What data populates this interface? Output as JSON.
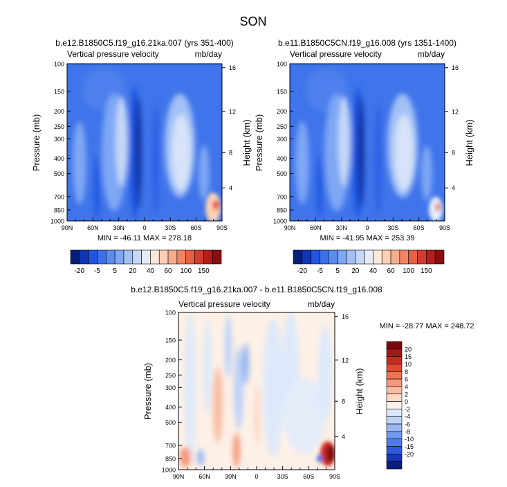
{
  "title": "SON",
  "colors": {
    "panel_fill_pale": "#dce8fa",
    "panel_fill_mid": "#6f9ff0",
    "panel_fill_deep": "#1f55e0",
    "panel_fill_darkest": "#07207d",
    "diff_fill_neutral": "#ffffff",
    "axis": "#000000"
  },
  "chart_data": [
    {
      "type": "heatmap",
      "id": "panel1",
      "title": "b.e12.B1850C5.f19_g16.21ka.007 (yrs 351-400)",
      "left_label": "Vertical pressure velocity",
      "right_label": "mb/day",
      "xlabel": "",
      "ylabel": "Pressure (mb)",
      "y2label": "Height (km)",
      "x_ticks": [
        "90N",
        "60N",
        "30N",
        "0",
        "30S",
        "60S",
        "90S"
      ],
      "x_tick_values": [
        90,
        60,
        30,
        0,
        -30,
        -60,
        -90
      ],
      "xlim": [
        90,
        -90
      ],
      "y_ticks": [
        "100",
        "150",
        "200",
        "250",
        "300",
        "400",
        "500",
        "700",
        "850",
        "1000"
      ],
      "y_tick_values": [
        100,
        150,
        200,
        250,
        300,
        400,
        500,
        700,
        850,
        1000
      ],
      "ylim": [
        100,
        1000
      ],
      "y2_ticks": [
        "4",
        "8",
        "12",
        "16"
      ],
      "y2_tick_pressures": [
        616,
        367,
        201,
        106
      ],
      "stats": {
        "min": -46.11,
        "max": 278.18
      },
      "stats_text": "MIN = -46.11   MAX = 278.18"
    },
    {
      "type": "heatmap",
      "id": "panel2",
      "title": "b.e11.B1850C5CN.f19_g16.008 (yrs 1351-1400)",
      "left_label": "Vertical pressure velocity",
      "right_label": "mb/day",
      "xlabel": "",
      "ylabel": "Pressure (mb)",
      "y2label": "Height (km)",
      "x_ticks": [
        "90N",
        "60N",
        "30N",
        "0",
        "30S",
        "60S",
        "90S"
      ],
      "x_tick_values": [
        90,
        60,
        30,
        0,
        -30,
        -60,
        -90
      ],
      "xlim": [
        90,
        -90
      ],
      "y_ticks": [
        "100",
        "150",
        "200",
        "250",
        "300",
        "400",
        "500",
        "700",
        "850",
        "1000"
      ],
      "y_tick_values": [
        100,
        150,
        200,
        250,
        300,
        400,
        500,
        700,
        850,
        1000
      ],
      "ylim": [
        100,
        1000
      ],
      "y2_ticks": [
        "4",
        "8",
        "12",
        "16"
      ],
      "y2_tick_pressures": [
        616,
        367,
        201,
        106
      ],
      "stats": {
        "min": -41.95,
        "max": 253.39
      },
      "stats_text": "MIN = -41.95   MAX = 253.39"
    },
    {
      "type": "heatmap",
      "id": "panel3",
      "title": "b.e12.B1850C5.f19_g16.21ka.007 - b.e11.B1850C5CN.f19_g16.008",
      "left_label": "Vertical pressure velocity",
      "right_label": "mb/day",
      "xlabel": "",
      "ylabel": "Pressure (mb)",
      "y2label": "Height (km)",
      "x_ticks": [
        "90N",
        "60N",
        "30N",
        "0",
        "30S",
        "60S",
        "90S"
      ],
      "x_tick_values": [
        90,
        60,
        30,
        0,
        -30,
        -60,
        -90
      ],
      "xlim": [
        90,
        -90
      ],
      "y_ticks": [
        "100",
        "150",
        "200",
        "250",
        "300",
        "400",
        "500",
        "700",
        "850",
        "1000"
      ],
      "y_tick_values": [
        100,
        150,
        200,
        250,
        300,
        400,
        500,
        700,
        850,
        1000
      ],
      "ylim": [
        100,
        1000
      ],
      "y2_ticks": [
        "4",
        "8",
        "12",
        "16"
      ],
      "y2_tick_pressures": [
        616,
        367,
        201,
        106
      ],
      "stats": {
        "min": -28.77,
        "max": 248.72
      },
      "stats_text": "MIN = -28.77  MAX = 248.72"
    }
  ],
  "colorbar_main": {
    "labels": [
      "-20",
      "-5",
      "5",
      "20",
      "40",
      "60",
      "100",
      "150"
    ],
    "colors": [
      "#061f7b",
      "#0f35b8",
      "#1f55e0",
      "#3a70ec",
      "#5a8cf1",
      "#7ea7f4",
      "#a3c1f6",
      "#c6d7f7",
      "#e4ecf9",
      "#fde9da",
      "#fbd0b5",
      "#f8ad8a",
      "#f28464",
      "#e85f45",
      "#d43a2d",
      "#b51c1c",
      "#8a0d0d"
    ]
  },
  "colorbar_diff": {
    "labels": [
      "20",
      "15",
      "10",
      "8",
      "6",
      "4",
      "2",
      "0",
      "-2",
      "-4",
      "-6",
      "-8",
      "-10",
      "-15",
      "-20"
    ],
    "colors": [
      "#7b0a0a",
      "#a51616",
      "#c92a20",
      "#e24a30",
      "#ee7352",
      "#f5997a",
      "#f8bca1",
      "#fbd9c6",
      "#fdf0e6",
      "#dde9fa",
      "#bcd2f6",
      "#97b7f2",
      "#7399ec",
      "#4f7be6",
      "#2f5bdb",
      "#1736b8",
      "#091e80"
    ]
  }
}
